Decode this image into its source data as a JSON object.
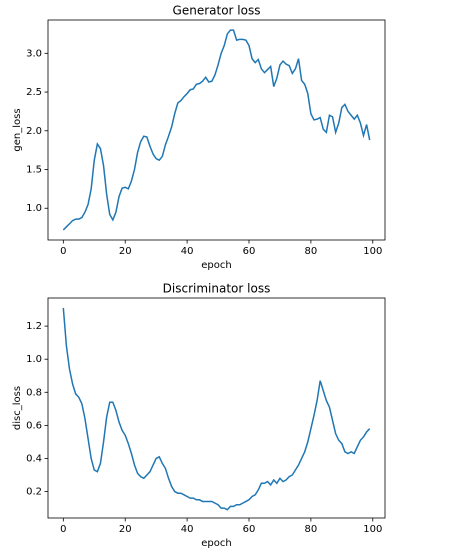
{
  "chart_data": [
    {
      "type": "line",
      "title": "Generator loss",
      "xlabel": "epoch",
      "ylabel": "gen_loss",
      "color": "#1f77b4",
      "x": [
        0,
        1,
        2,
        3,
        4,
        5,
        6,
        7,
        8,
        9,
        10,
        11,
        12,
        13,
        14,
        15,
        16,
        17,
        18,
        19,
        20,
        21,
        22,
        23,
        24,
        25,
        26,
        27,
        28,
        29,
        30,
        31,
        32,
        33,
        34,
        35,
        36,
        37,
        38,
        39,
        40,
        41,
        42,
        43,
        44,
        45,
        46,
        47,
        48,
        49,
        50,
        51,
        52,
        53,
        54,
        55,
        56,
        57,
        58,
        59,
        60,
        61,
        62,
        63,
        64,
        65,
        66,
        67,
        68,
        69,
        70,
        71,
        72,
        73,
        74,
        75,
        76,
        77,
        78,
        79,
        80,
        81,
        82,
        83,
        84,
        85,
        86,
        87,
        88,
        89,
        90,
        91,
        92,
        93,
        94,
        95,
        96,
        97,
        98,
        99
      ],
      "values": [
        0.72,
        0.76,
        0.8,
        0.84,
        0.86,
        0.86,
        0.88,
        0.95,
        1.05,
        1.25,
        1.62,
        1.83,
        1.77,
        1.55,
        1.18,
        0.92,
        0.85,
        0.95,
        1.15,
        1.26,
        1.27,
        1.25,
        1.35,
        1.5,
        1.72,
        1.86,
        1.93,
        1.92,
        1.8,
        1.7,
        1.64,
        1.62,
        1.67,
        1.82,
        1.93,
        2.05,
        2.22,
        2.36,
        2.39,
        2.44,
        2.48,
        2.53,
        2.54,
        2.6,
        2.61,
        2.64,
        2.69,
        2.63,
        2.64,
        2.72,
        2.85,
        3.0,
        3.1,
        3.25,
        3.3,
        3.3,
        3.17,
        3.18,
        3.18,
        3.17,
        3.1,
        2.93,
        2.88,
        2.92,
        2.8,
        2.75,
        2.79,
        2.83,
        2.57,
        2.68,
        2.85,
        2.9,
        2.86,
        2.84,
        2.74,
        2.8,
        2.93,
        2.65,
        2.6,
        2.48,
        2.22,
        2.14,
        2.15,
        2.17,
        2.02,
        1.98,
        2.2,
        2.18,
        1.98,
        2.1,
        2.3,
        2.34,
        2.25,
        2.2,
        2.15,
        2.2,
        2.1,
        1.94,
        2.08,
        1.88
      ],
      "xlim": [
        -4.95,
        103.95
      ],
      "ylim": [
        0.59,
        3.43
      ],
      "xticks": [
        0,
        20,
        40,
        60,
        80,
        100
      ],
      "yticks": [
        {
          "value": 1,
          "label": "1.0"
        },
        1.5,
        {
          "value": 2,
          "label": "2.0"
        },
        2.5,
        {
          "value": 3,
          "label": "3.0"
        }
      ]
    },
    {
      "type": "line",
      "title": "Discriminator loss",
      "xlabel": "epoch",
      "ylabel": "disc_loss",
      "color": "#1f77b4",
      "x": [
        0,
        1,
        2,
        3,
        4,
        5,
        6,
        7,
        8,
        9,
        10,
        11,
        12,
        13,
        14,
        15,
        16,
        17,
        18,
        19,
        20,
        21,
        22,
        23,
        24,
        25,
        26,
        27,
        28,
        29,
        30,
        31,
        32,
        33,
        34,
        35,
        36,
        37,
        38,
        39,
        40,
        41,
        42,
        43,
        44,
        45,
        46,
        47,
        48,
        49,
        50,
        51,
        52,
        53,
        54,
        55,
        56,
        57,
        58,
        59,
        60,
        61,
        62,
        63,
        64,
        65,
        66,
        67,
        68,
        69,
        70,
        71,
        72,
        73,
        74,
        75,
        76,
        77,
        78,
        79,
        80,
        81,
        82,
        83,
        84,
        85,
        86,
        87,
        88,
        89,
        90,
        91,
        92,
        93,
        94,
        95,
        96,
        97,
        98,
        99
      ],
      "values": [
        1.31,
        1.08,
        0.94,
        0.85,
        0.79,
        0.77,
        0.73,
        0.64,
        0.52,
        0.4,
        0.33,
        0.32,
        0.37,
        0.5,
        0.65,
        0.74,
        0.74,
        0.69,
        0.62,
        0.57,
        0.54,
        0.49,
        0.43,
        0.36,
        0.31,
        0.29,
        0.28,
        0.3,
        0.32,
        0.36,
        0.4,
        0.41,
        0.37,
        0.34,
        0.28,
        0.23,
        0.2,
        0.19,
        0.19,
        0.18,
        0.17,
        0.16,
        0.16,
        0.15,
        0.15,
        0.14,
        0.14,
        0.14,
        0.14,
        0.13,
        0.12,
        0.1,
        0.1,
        0.09,
        0.11,
        0.11,
        0.12,
        0.12,
        0.13,
        0.14,
        0.15,
        0.17,
        0.18,
        0.21,
        0.25,
        0.25,
        0.26,
        0.24,
        0.27,
        0.25,
        0.28,
        0.26,
        0.27,
        0.29,
        0.3,
        0.33,
        0.36,
        0.4,
        0.44,
        0.5,
        0.58,
        0.66,
        0.75,
        0.87,
        0.81,
        0.75,
        0.71,
        0.63,
        0.55,
        0.51,
        0.49,
        0.44,
        0.43,
        0.44,
        0.43,
        0.47,
        0.51,
        0.53,
        0.56,
        0.58
      ],
      "xlim": [
        -4.95,
        103.95
      ],
      "ylim": [
        0.04,
        1.37
      ],
      "xticks": [
        0,
        20,
        40,
        60,
        80,
        100
      ],
      "yticks": [
        0.2,
        0.4,
        0.6,
        0.8,
        {
          "value": 1,
          "label": "1.0"
        },
        1.2
      ]
    }
  ]
}
